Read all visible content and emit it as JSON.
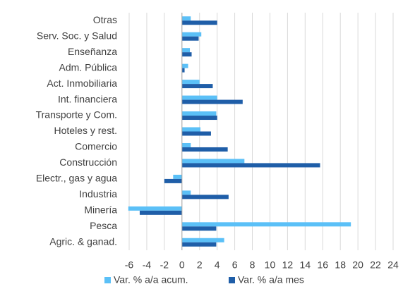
{
  "chart_data": {
    "type": "bar",
    "orientation": "horizontal",
    "categories": [
      "Otras",
      "Serv. Soc. y Salud",
      "Enseñanza",
      "Adm. Pública",
      "Act. Inmobiliaria",
      "Int. financiera",
      "Transporte y Com.",
      "Hoteles y rest.",
      "Comercio",
      "Construcción",
      "Electr., gas y agua",
      "Industria",
      "Minería",
      "Pesca",
      "Agric. & ganad."
    ],
    "series": [
      {
        "name": "Var. % a/a acum.",
        "color": "#5bc0f7",
        "values": [
          1.0,
          2.2,
          0.9,
          0.7,
          2.0,
          4.0,
          3.9,
          2.1,
          1.0,
          7.1,
          -1.0,
          1.0,
          -6.1,
          19.2,
          4.8
        ]
      },
      {
        "name": "Var. % a/a mes",
        "color": "#1f5ea8",
        "values": [
          4.0,
          1.9,
          1.1,
          0.3,
          3.5,
          6.9,
          4.0,
          3.3,
          5.2,
          15.7,
          -2.0,
          5.3,
          -4.8,
          3.9,
          3.9
        ]
      }
    ],
    "xlim": [
      -6,
      24
    ],
    "xticks": [
      -6,
      -4,
      -2,
      0,
      2,
      4,
      6,
      8,
      10,
      12,
      14,
      16,
      18,
      20,
      22,
      24
    ],
    "grid": true,
    "legend": "bottom"
  }
}
